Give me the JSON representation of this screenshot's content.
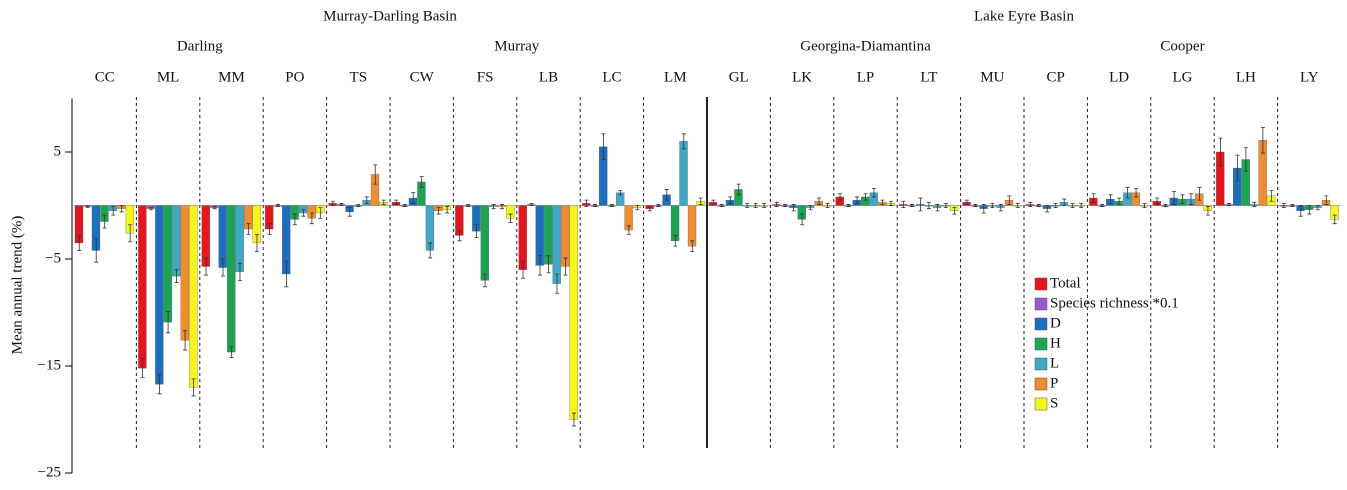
{
  "chart_data": {
    "type": "bar",
    "y_label": "Mean annual trend (%)",
    "categories": [
      "CC",
      "ML",
      "MM",
      "PO",
      "TS",
      "CW",
      "FS",
      "LB",
      "LC",
      "LM",
      "GL",
      "LK",
      "LP",
      "LT",
      "MU",
      "CP",
      "LD",
      "LG",
      "LH",
      "LY"
    ],
    "basins": [
      {
        "name": "Murray-Darling Basin",
        "regions": [
          {
            "name": "Darling",
            "size": 4
          },
          {
            "name": "Murray",
            "size": 6
          }
        ]
      },
      {
        "name": "Lake Eyre Basin",
        "regions": [
          {
            "name": "Georgina-Diamantina",
            "size": 5
          },
          {
            "name": "Cooper",
            "size": 5
          }
        ]
      }
    ],
    "ylim": [
      -25,
      10
    ],
    "yticks": [
      5,
      {
        "value": -5,
        "label": "−5"
      },
      {
        "value": -15,
        "label": "−15"
      },
      {
        "value": -25,
        "label": "−25"
      }
    ],
    "series": [
      {
        "name": "Total",
        "color": "#e8141c",
        "values": [
          -3.5,
          -15.2,
          -5.7,
          -2.2,
          0.2,
          0.3,
          -2.8,
          -6.0,
          0.2,
          -0.3,
          0.3,
          0.1,
          0.8,
          0.1,
          0.3,
          0.1,
          0.7,
          0.4,
          5.0,
          0
        ],
        "errors": [
          0.7,
          0.9,
          0.8,
          0.5,
          0.2,
          0.2,
          0.5,
          0.8,
          0.3,
          0.2,
          0.2,
          0.2,
          0.3,
          0.3,
          0.2,
          0.2,
          0.4,
          0.3,
          1.3,
          0.2
        ]
      },
      {
        "name": "Species richness *0.1",
        "color": "#9b59d0",
        "values": [
          -0.1,
          -0.3,
          -0.2,
          0,
          0.1,
          0,
          0,
          0.1,
          0,
          0,
          0,
          0,
          0,
          0,
          0,
          0,
          0,
          0,
          0.1,
          0
        ],
        "errors": [
          0.1,
          0.1,
          0.1,
          0.1,
          0.1,
          0.1,
          0.1,
          0.1,
          0.1,
          0.1,
          0.1,
          0.1,
          0.1,
          0.1,
          0.1,
          0.1,
          0.1,
          0.1,
          0.1,
          0.1
        ]
      },
      {
        "name": "D",
        "color": "#1b6fc0",
        "values": [
          -4.2,
          -16.7,
          -5.8,
          -6.4,
          -0.6,
          0.7,
          -2.4,
          -5.6,
          5.5,
          1.0,
          0.5,
          -0.2,
          0.5,
          0.1,
          -0.3,
          -0.3,
          0.6,
          0.7,
          3.5,
          -0.5
        ],
        "errors": [
          1.1,
          0.9,
          0.8,
          1.2,
          0.4,
          0.5,
          0.6,
          0.9,
          1.2,
          0.5,
          0.3,
          0.3,
          0.3,
          0.6,
          0.4,
          0.3,
          0.4,
          0.6,
          1.2,
          0.5
        ]
      },
      {
        "name": "H",
        "color": "#1aa550",
        "values": [
          -1.5,
          -10.9,
          -13.7,
          -1.3,
          0,
          2.2,
          -7.0,
          -5.5,
          0,
          -3.3,
          1.5,
          -1.3,
          0.8,
          0,
          0,
          0,
          0.4,
          0.6,
          4.3,
          -0.4
        ],
        "errors": [
          0.6,
          1.0,
          0.5,
          0.5,
          0.1,
          0.5,
          0.6,
          0.8,
          0.1,
          0.5,
          0.5,
          0.5,
          0.3,
          0.3,
          0.2,
          0.2,
          0.3,
          0.4,
          1.1,
          0.4
        ]
      },
      {
        "name": "L",
        "color": "#3fa8c8",
        "values": [
          -0.5,
          -6.6,
          -6.2,
          -0.7,
          0.5,
          -4.2,
          -0.1,
          -7.3,
          1.2,
          6.0,
          0,
          -0.2,
          1.2,
          -0.2,
          -0.2,
          0.3,
          1.2,
          0.6,
          0.1,
          -0.2
        ],
        "errors": [
          0.4,
          0.6,
          0.8,
          0.3,
          0.3,
          0.7,
          0.2,
          0.9,
          0.2,
          0.7,
          0.2,
          0.2,
          0.4,
          0.3,
          0.3,
          0.3,
          0.5,
          0.5,
          0.2,
          0.2
        ]
      },
      {
        "name": "P",
        "color": "#f28c30",
        "values": [
          -0.3,
          -12.6,
          -2.2,
          -1.2,
          2.9,
          -0.5,
          -0.1,
          -5.7,
          -2.3,
          -3.8,
          0,
          0.4,
          0.3,
          0,
          0.5,
          0,
          1.2,
          1.1,
          6.1,
          0.5
        ],
        "errors": [
          0.3,
          0.9,
          0.5,
          0.5,
          0.9,
          0.3,
          0.2,
          0.8,
          0.4,
          0.5,
          0.2,
          0.3,
          0.2,
          0.2,
          0.4,
          0.2,
          0.4,
          0.6,
          1.2,
          0.4
        ]
      },
      {
        "name": "S",
        "color": "#f5f516",
        "values": [
          -2.6,
          -17.0,
          -3.5,
          -0.7,
          0.3,
          -0.4,
          -1.2,
          -20.0,
          -0.2,
          0.4,
          0,
          0,
          0.2,
          -0.5,
          0,
          0,
          0,
          -0.5,
          0.9,
          -1.3
        ],
        "errors": [
          0.8,
          0.8,
          0.8,
          0.5,
          0.2,
          0.3,
          0.4,
          0.6,
          0.2,
          0.3,
          0.2,
          0.2,
          0.2,
          0.3,
          0.2,
          0.2,
          0.2,
          0.4,
          0.5,
          0.4
        ]
      }
    ]
  }
}
